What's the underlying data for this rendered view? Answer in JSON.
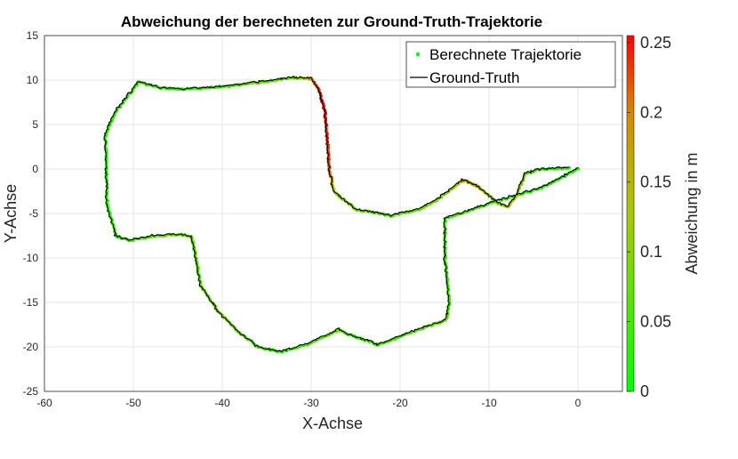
{
  "chart_data": {
    "type": "scatter",
    "title": "Abweichung der berechneten zur Ground-Truth-Trajektorie",
    "xlabel": "X-Achse",
    "ylabel": "Y-Achse",
    "xlim": [
      -60,
      5
    ],
    "ylim": [
      -25,
      15
    ],
    "xticks": [
      "-60",
      "-50",
      "-40",
      "-30",
      "-20",
      "-10",
      "0"
    ],
    "yticks": [
      "15",
      "10",
      "5",
      "0",
      "-5",
      "-10",
      "-15",
      "-20",
      "-25"
    ],
    "grid": true,
    "legend_position": "top-right",
    "legend": [
      "Berechnete Trajektorie",
      "Ground-Truth"
    ],
    "colorbar": {
      "label": "Abweichung in m",
      "range": [
        0,
        0.255
      ],
      "ticks": [
        "0.25",
        "0.2",
        "0.15",
        "0.1",
        "0.05",
        "0"
      ],
      "colors": [
        "#00ff00",
        "#b4c800",
        "#ff0000"
      ]
    },
    "series": [
      {
        "name": "Ground-Truth",
        "color": "#000000",
        "x": [
          0,
          -4,
          -8,
          -12,
          -15,
          -15,
          -14.5,
          -14.8,
          -15,
          -18,
          -22.5,
          -26,
          -27,
          -30,
          -33.5,
          -36,
          -38.5,
          -40.5,
          -42.5,
          -43,
          -43.5,
          -45,
          -48,
          -50.5,
          -52,
          -53,
          -53.2,
          -52,
          -49.5,
          -47,
          -45,
          -40,
          -36,
          -32,
          -30,
          -29.2,
          -28.5,
          -28,
          -27.5,
          -25,
          -21,
          -18,
          -16,
          -14,
          -13,
          -11.5,
          -10,
          -9,
          -8,
          -7,
          -6,
          -4.5,
          -1
        ],
        "y": [
          0.1,
          -2,
          -3.2,
          -4.5,
          -5.5,
          -10,
          -15,
          -16.5,
          -17,
          -18,
          -19.7,
          -18.5,
          -18,
          -19.5,
          -20.5,
          -20,
          -18,
          -16,
          -13,
          -10,
          -7.5,
          -7.3,
          -7.5,
          -8,
          -7.5,
          -4,
          4,
          6.5,
          9.8,
          9.2,
          9,
          9.3,
          9.8,
          10.3,
          10.2,
          9,
          6.5,
          0,
          -2.5,
          -4.5,
          -5.2,
          -4.5,
          -3.5,
          -2,
          -1.2,
          -1.8,
          -3,
          -3.8,
          -4.2,
          -3,
          -0.5,
          0,
          0.2
        ]
      },
      {
        "name": "Berechnete Trajektorie",
        "color_by": "Abweichung in m",
        "deviation": [
          0.02,
          0.02,
          0.05,
          0.06,
          0.05,
          0.04,
          0.05,
          0.07,
          0.08,
          0.06,
          0.05,
          0.05,
          0.07,
          0.06,
          0.04,
          0.05,
          0.08,
          0.1,
          0.07,
          0.06,
          0.08,
          0.09,
          0.06,
          0.05,
          0.04,
          0.03,
          0.03,
          0.04,
          0.05,
          0.04,
          0.04,
          0.05,
          0.06,
          0.08,
          0.15,
          0.23,
          0.25,
          0.2,
          0.12,
          0.08,
          0.06,
          0.07,
          0.09,
          0.1,
          0.14,
          0.16,
          0.11,
          0.09,
          0.12,
          0.13,
          0.08,
          0.05,
          0.03
        ]
      }
    ]
  }
}
